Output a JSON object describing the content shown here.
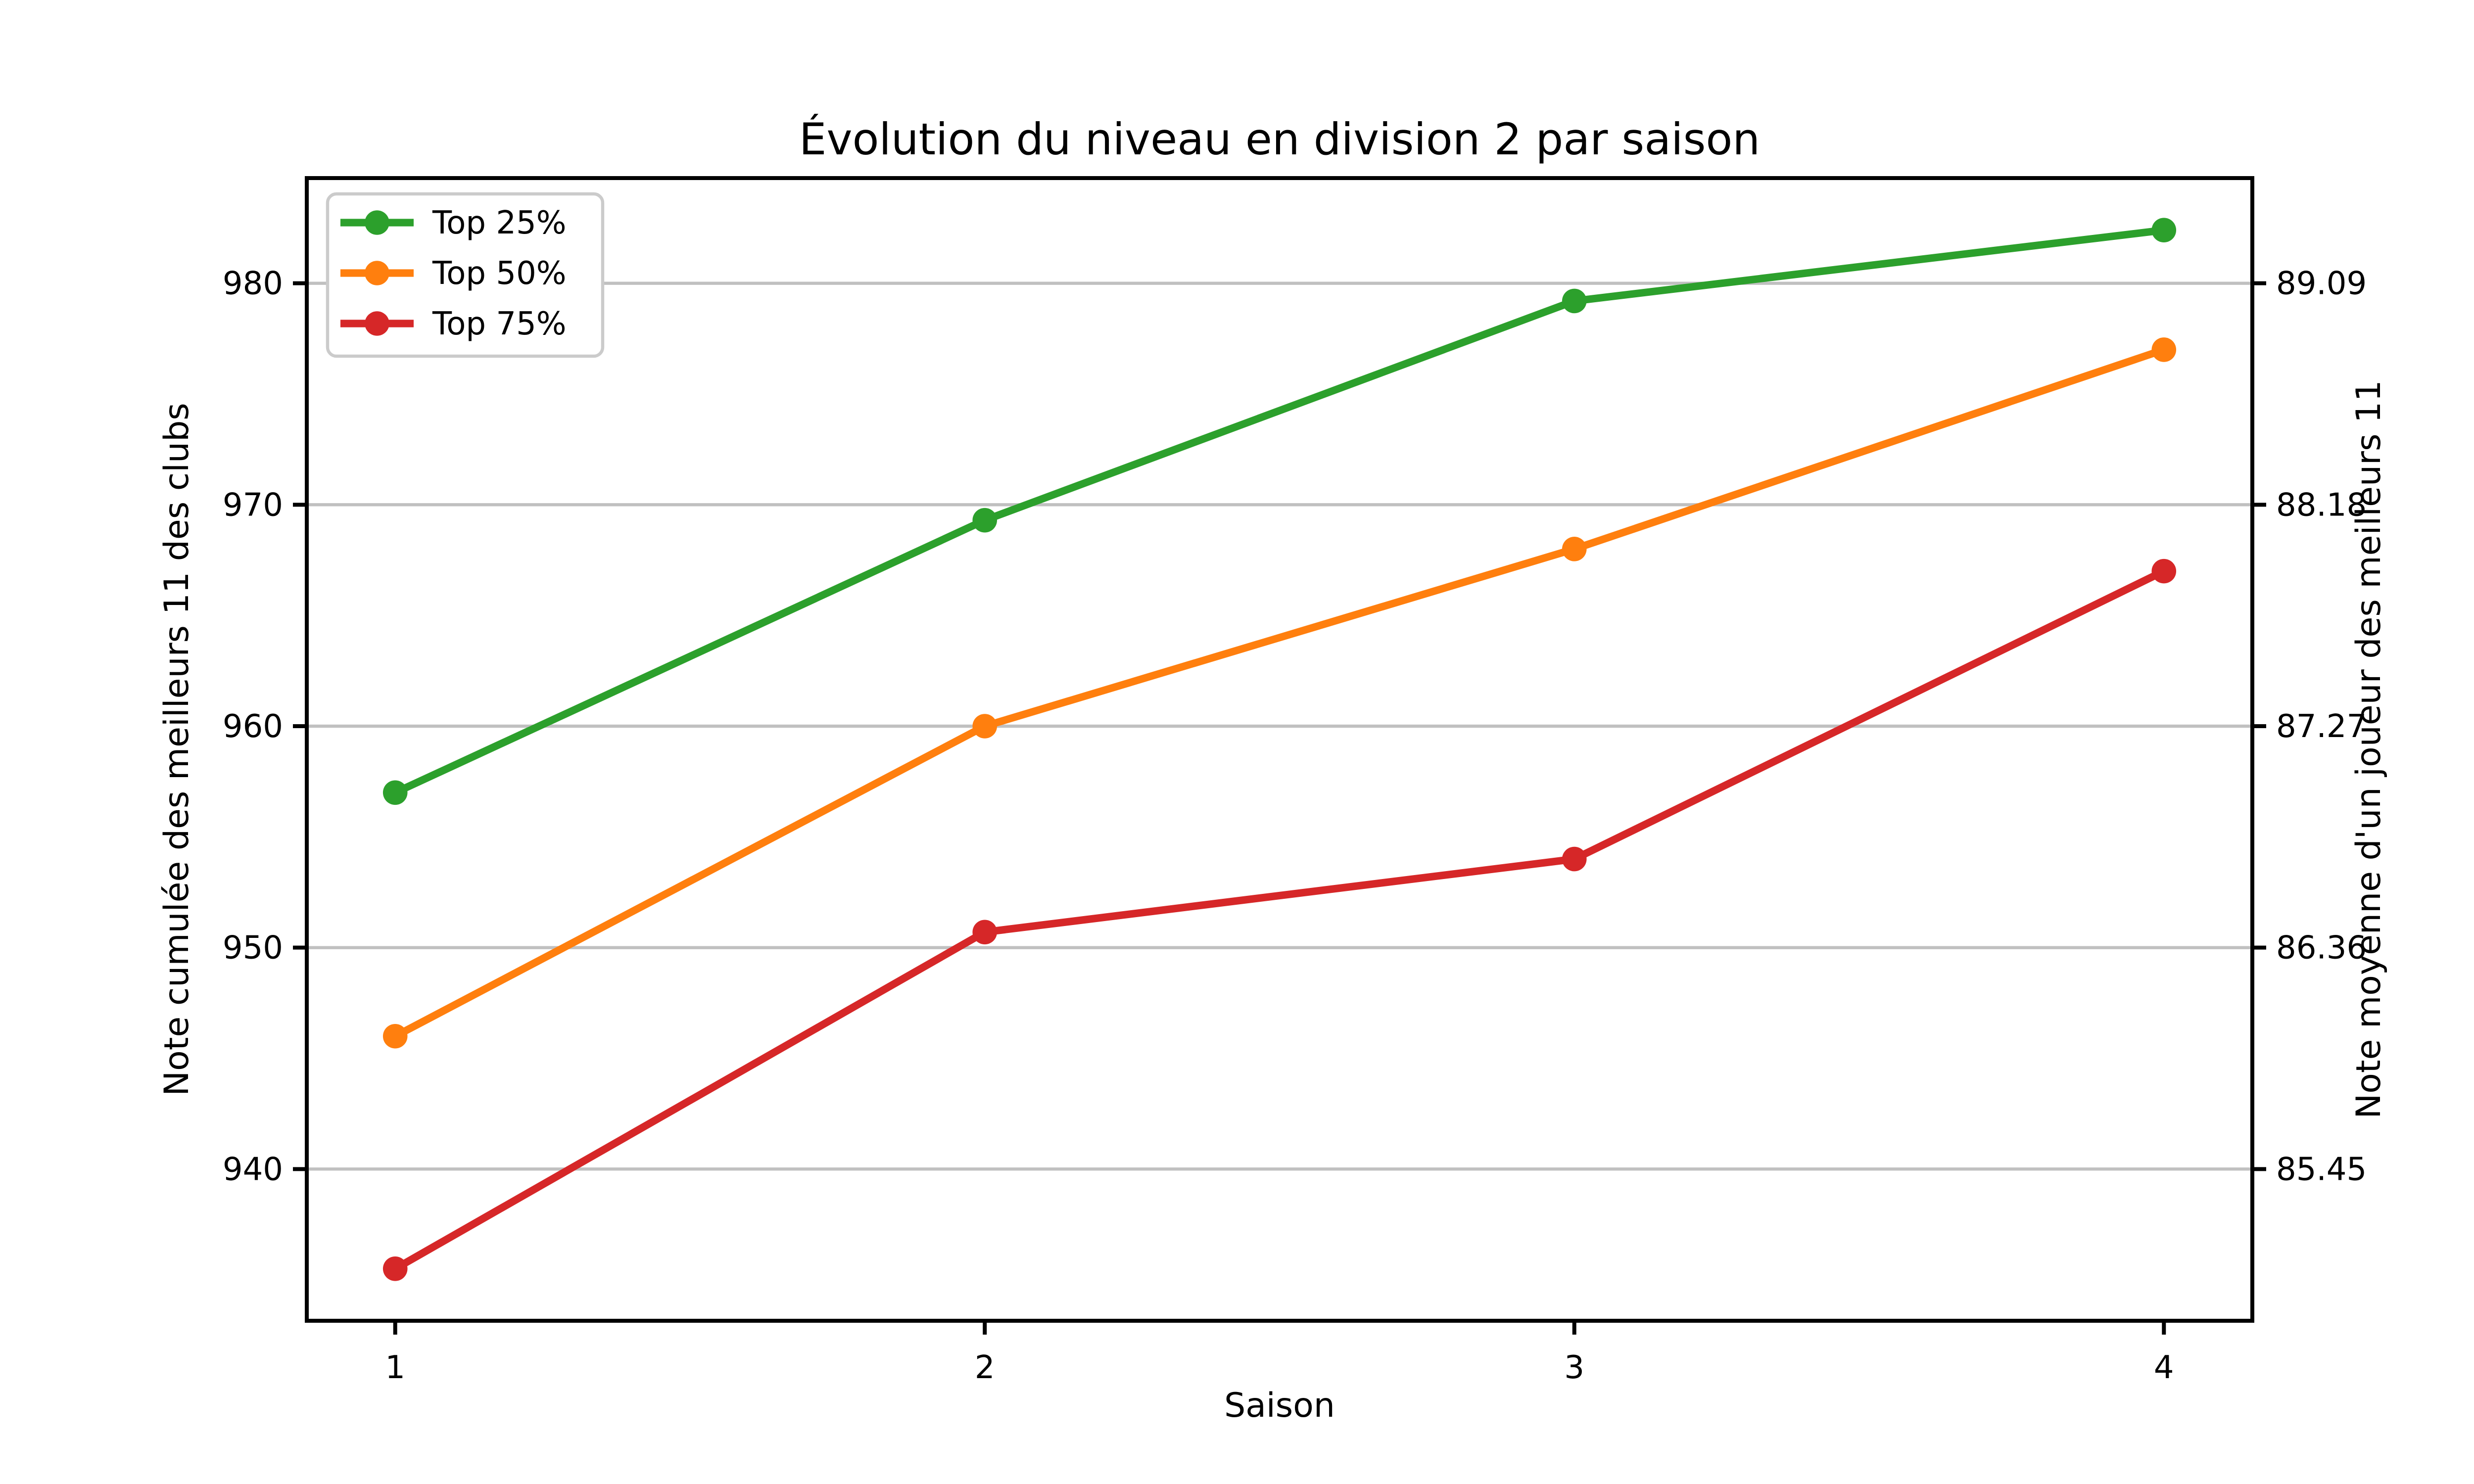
{
  "figure": {
    "background": "#ffffff"
  },
  "chart_data": {
    "type": "line",
    "title": "Évolution du niveau en division 2 par saison",
    "xlabel": "Saison",
    "ylabel_left": "Note cumulée des meilleurs 11 des clubs",
    "ylabel_right": "Note moyenne d'un joueur des meilleurs 11",
    "x": [
      1,
      2,
      3,
      4
    ],
    "xtick_labels": [
      "1",
      "2",
      "3",
      "4"
    ],
    "series": [
      {
        "name": "Top 25%",
        "color": "#2ca02c",
        "values": [
          957.0,
          969.3,
          979.2,
          982.4
        ]
      },
      {
        "name": "Top 50%",
        "color": "#ff7f0e",
        "values": [
          946.0,
          960.0,
          968.0,
          977.0
        ]
      },
      {
        "name": "Top 75%",
        "color": "#d62728",
        "values": [
          935.5,
          950.7,
          954.0,
          967.0
        ]
      }
    ],
    "yticks_left": {
      "values": [
        940,
        950,
        960,
        970,
        980
      ],
      "labels": [
        "940",
        "950",
        "960",
        "970",
        "980"
      ]
    },
    "yticks_right": {
      "labels": [
        "85.45",
        "86.36",
        "87.27",
        "88.18",
        "89.09"
      ]
    },
    "ylim": [
      933.15,
      984.75
    ],
    "xlim": [
      0.85,
      4.15
    ],
    "grid": true,
    "grid_color": "#c0c0c0",
    "axis_color": "#000000",
    "legend": {
      "position": "upper left",
      "entries": [
        "Top 25%",
        "Top 50%",
        "Top 75%"
      ]
    }
  }
}
